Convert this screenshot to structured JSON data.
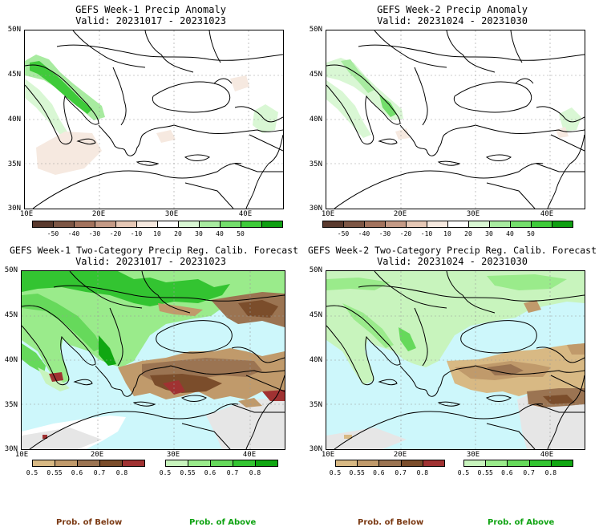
{
  "panels": [
    {
      "id": "w1-anom",
      "title1": "GEFS Week-1 Precip Anomaly",
      "title2": "Valid: 20231017 - 20231023"
    },
    {
      "id": "w2-anom",
      "title1": "GEFS Week-2 Precip Anomaly",
      "title2": "Valid: 20231024 - 20231030"
    },
    {
      "id": "w1-prob",
      "title1": "GEFS Week-1 Two-Category Precip Reg. Calib. Forecast",
      "title2": "Valid: 20231017 - 20231023"
    },
    {
      "id": "w2-prob",
      "title1": "GEFS Week-2 Two-Category Precip Reg. Calib. Forecast",
      "title2": "Valid: 20231024 - 20231030"
    }
  ],
  "lat_labels": [
    "50N",
    "45N",
    "40N",
    "35N",
    "30N"
  ],
  "lon_labels": [
    "10E",
    "20E",
    "30E",
    "40E"
  ],
  "anomaly_colorbar": {
    "ticks": [
      "-50",
      "-40",
      "-30",
      "-20",
      "-10",
      "10",
      "20",
      "30",
      "40",
      "50"
    ],
    "colors": [
      "#5a3a2e",
      "#7d5645",
      "#a3735e",
      "#c49a86",
      "#e6c8b6",
      "#f6e9e0",
      "#ffffff",
      "#d9f7d4",
      "#a8eba0",
      "#74de6c",
      "#3fcb3a",
      "#0f9f12"
    ]
  },
  "prob_below_colorbar": {
    "ticks": [
      "0.5",
      "0.55",
      "0.6",
      "0.7",
      "0.8"
    ],
    "colors": [
      "#d8b984",
      "#c09a6b",
      "#9b7452",
      "#7b4d2b",
      "#a03232"
    ]
  },
  "prob_above_colorbar": {
    "ticks": [
      "0.5",
      "0.55",
      "0.6",
      "0.7",
      "0.8"
    ],
    "colors": [
      "#c8f4bd",
      "#9aeb8b",
      "#66d95b",
      "#33c431",
      "#10a712"
    ]
  },
  "captions": {
    "below": "Prob. of Below",
    "above": "Prob. of Above"
  },
  "map_colors": {
    "sea_prob": "#cdf7fb",
    "nodata": "#e6e6e6",
    "coast": "#000000"
  }
}
